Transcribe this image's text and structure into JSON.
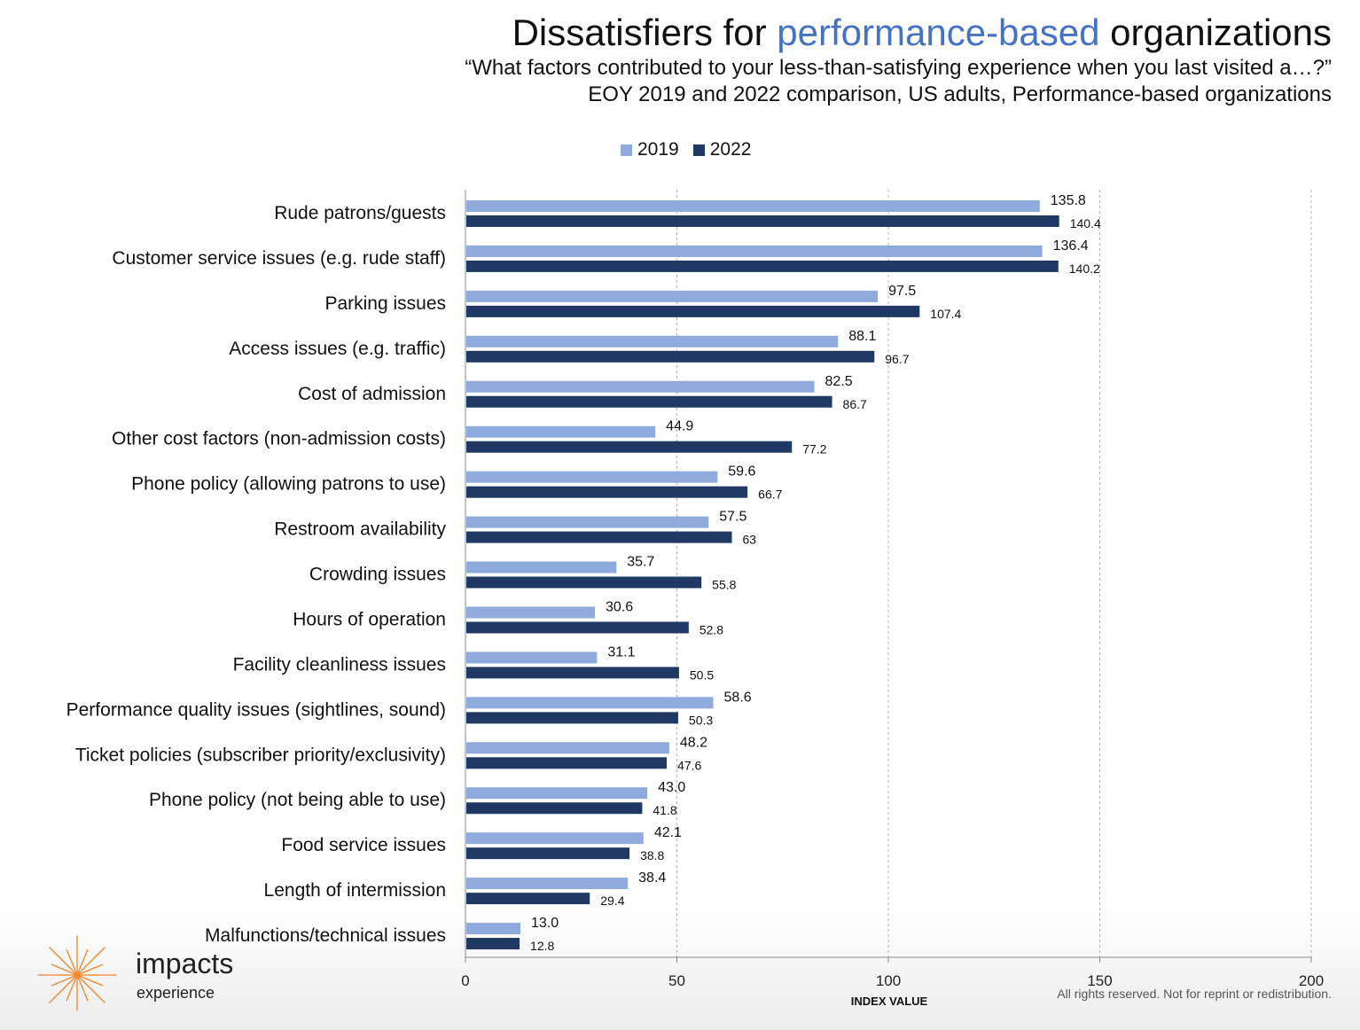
{
  "title": {
    "prefix": "Dissatisfiers for ",
    "highlight": "performance-based",
    "suffix": " organizations"
  },
  "subtitle": {
    "line1": "“What factors contributed to your less-than-satisfying experience when you last visited a…?”",
    "line2": "EOY 2019 and 2022 comparison, US adults, Performance-based organizations"
  },
  "colors": {
    "series_2019": "#8faadc",
    "series_2022": "#1f3864",
    "title_highlight": "#4472c4",
    "logo": "#f4842b"
  },
  "chart_data": {
    "type": "bar",
    "orientation": "horizontal",
    "categories": [
      "Rude patrons/guests",
      "Customer service issues (e.g. rude staff)",
      "Parking issues",
      "Access issues (e.g. traffic)",
      "Cost of admission",
      "Other cost factors (non-admission costs)",
      "Phone policy (allowing patrons to use)",
      "Restroom availability",
      "Crowding issues",
      "Hours of operation",
      "Facility cleanliness issues",
      "Performance quality issues (sightlines, sound)",
      "Ticket policies (subscriber priority/exclusivity)",
      "Phone policy (not being able to use)",
      "Food service issues",
      "Length of intermission",
      "Malfunctions/technical issues"
    ],
    "series": [
      {
        "name": "2019",
        "values": [
          135.8,
          136.4,
          97.5,
          88.1,
          82.5,
          44.9,
          59.6,
          57.5,
          35.7,
          30.6,
          31.1,
          58.6,
          48.2,
          43.0,
          42.1,
          38.4,
          13.0
        ],
        "labels": [
          "135.8",
          "136.4",
          "97.5",
          "88.1",
          "82.5",
          "44.9",
          "59.6",
          "57.5",
          "35.7",
          "30.6",
          "31.1",
          "58.6",
          "48.2",
          "43.0",
          "42.1",
          "38.4",
          "13.0"
        ]
      },
      {
        "name": "2022",
        "values": [
          140.4,
          140.2,
          107.4,
          96.7,
          86.7,
          77.2,
          66.7,
          63,
          55.8,
          52.8,
          50.5,
          50.3,
          47.6,
          41.8,
          38.8,
          29.4,
          12.8
        ],
        "labels": [
          "140.4",
          "140.2",
          "107.4",
          "96.7",
          "86.7",
          "77.2",
          "66.7",
          "63",
          "55.8",
          "52.8",
          "50.5",
          "50.3",
          "47.6",
          "41.8",
          "38.8",
          "29.4",
          "12.8"
        ]
      }
    ],
    "xlabel": "INDEX VALUE",
    "xlim": [
      0,
      200
    ],
    "xticks": [
      0,
      50,
      100,
      150,
      200
    ],
    "grid": "vertical dashed",
    "legend": "top-center"
  },
  "logo": {
    "word": "impacts",
    "sub": "experience"
  },
  "footer": "All rights reserved. Not for reprint or redistribution."
}
